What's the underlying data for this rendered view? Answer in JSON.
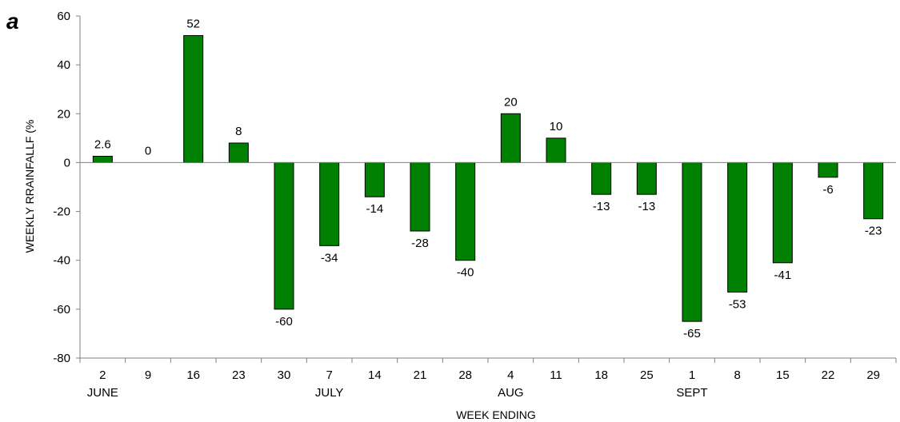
{
  "panel_label": "a",
  "chart_data": {
    "type": "bar",
    "title": "",
    "xlabel": "WEEK ENDING",
    "ylabel": "WEEKLY RRAINFALLF (%",
    "ylim": [
      -80,
      60
    ],
    "yticks": [
      -80,
      -60,
      -40,
      -20,
      0,
      20,
      40,
      60
    ],
    "categories": [
      "2",
      "9",
      "16",
      "23",
      "30",
      "7",
      "14",
      "21",
      "28",
      "4",
      "11",
      "18",
      "25",
      "1",
      "8",
      "15",
      "22",
      "29"
    ],
    "values": [
      2.6,
      0,
      52,
      8,
      -60,
      -34,
      -14,
      -28,
      -40,
      20,
      10,
      -13,
      -13,
      -65,
      -53,
      -41,
      -6,
      -23
    ],
    "data_labels": [
      "2.6",
      "0",
      "52",
      "8",
      "-60",
      "-34",
      "-14",
      "-28",
      "-40",
      "20",
      "10",
      "-13",
      "-13",
      "-65",
      "-53",
      "-41",
      "-6",
      "-23"
    ],
    "month_labels": [
      {
        "label": "JUNE",
        "index": 0
      },
      {
        "label": "JULY",
        "index": 5
      },
      {
        "label": "AUG",
        "index": 9
      },
      {
        "label": "SEPT",
        "index": 13
      }
    ],
    "bar_color": "#008000",
    "grid": false,
    "legend": "none"
  }
}
